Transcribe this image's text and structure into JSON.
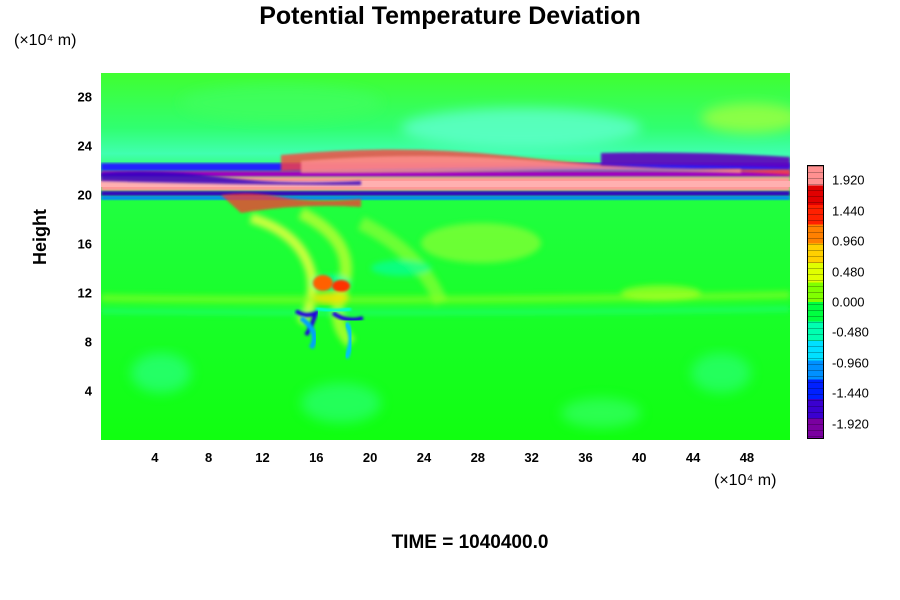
{
  "chart_data": {
    "type": "heatmap",
    "title": "Potential Temperature Deviation",
    "ylabel": "Height",
    "xunit": "(×10⁴ m)",
    "yunit": "(×10⁴ m)",
    "time_label": "TIME = 1040400.0",
    "xlim": [
      0,
      51.2
    ],
    "ylim": [
      0,
      30
    ],
    "x_ticks": [
      "4",
      "8",
      "12",
      "16",
      "20",
      "24",
      "28",
      "32",
      "36",
      "40",
      "44",
      "48"
    ],
    "x_tick_values": [
      4,
      8,
      12,
      16,
      20,
      24,
      28,
      32,
      36,
      40,
      44,
      48
    ],
    "y_ticks": [
      "4",
      "8",
      "12",
      "16",
      "20",
      "24",
      "28"
    ],
    "y_tick_values": [
      4,
      8,
      12,
      16,
      20,
      24,
      28
    ],
    "colorbar": {
      "min": -2.16,
      "max": 2.16,
      "labels": [
        "1.920",
        "1.440",
        "0.960",
        "0.480",
        "0.000",
        "-0.480",
        "-0.960",
        "-1.440",
        "-1.920"
      ],
      "label_values": [
        1.92,
        1.44,
        0.96,
        0.48,
        0.0,
        -0.48,
        -0.96,
        -1.44,
        -1.92
      ],
      "colors": [
        "#7a00a0",
        "#3a00d0",
        "#0020ff",
        "#0090ff",
        "#00e0ff",
        "#00ffb0",
        "#00ff40",
        "#80ff00",
        "#e0ff00",
        "#ffd000",
        "#ff8000",
        "#ff2000",
        "#e00000",
        "#ff9090"
      ]
    },
    "grid": false
  }
}
